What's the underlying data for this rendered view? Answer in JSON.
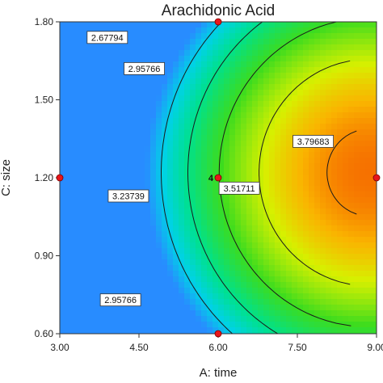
{
  "chart_data": {
    "type": "contour",
    "title": "Arachidonic Acid",
    "xlabel": "A: time",
    "ylabel": "C: size",
    "xlim": [
      3.0,
      9.0
    ],
    "ylim": [
      0.6,
      1.8
    ],
    "x_ticks": [
      "3.00",
      "4.50",
      "6.00",
      "7.50",
      "9.00"
    ],
    "y_ticks": [
      "0.60",
      "0.90",
      "1.20",
      "1.50",
      "1.80"
    ],
    "contours": [
      {
        "label": "2.67794",
        "value": 2.67794
      },
      {
        "label": "2.95766",
        "value": 2.95766
      },
      {
        "label": "3.23739",
        "value": 3.23739
      },
      {
        "label": "3.51711",
        "value": 3.51711
      },
      {
        "label": "3.79683",
        "value": 3.79683
      }
    ],
    "contour_labels": [
      {
        "text": "2.67794",
        "x": 3.9,
        "y": 1.74
      },
      {
        "text": "2.95766",
        "x": 4.6,
        "y": 1.62
      },
      {
        "text": "3.23739",
        "x": 4.3,
        "y": 1.13
      },
      {
        "text": "3.51711",
        "x": 6.4,
        "y": 1.16
      },
      {
        "text": "3.79683",
        "x": 7.8,
        "y": 1.34
      },
      {
        "text": "2.95766",
        "x": 4.15,
        "y": 0.73
      }
    ],
    "design_points": [
      {
        "x": 3.0,
        "y": 1.2
      },
      {
        "x": 6.0,
        "y": 1.8
      },
      {
        "x": 6.0,
        "y": 1.2,
        "count": "4"
      },
      {
        "x": 6.0,
        "y": 0.6
      },
      {
        "x": 9.0,
        "y": 1.2
      }
    ],
    "grid": false,
    "legend": "none"
  }
}
